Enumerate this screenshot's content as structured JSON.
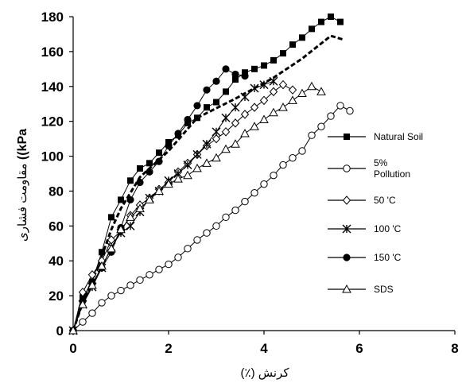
{
  "chart_data": {
    "type": "line",
    "title": "",
    "xlabel": "کرنش (٪)",
    "ylabel_main": "مقاومت فشاری",
    "ylabel_unit": "kPa)) ",
    "xlim": [
      0,
      8
    ],
    "ylim": [
      0,
      180
    ],
    "xticks": [
      0,
      2,
      4,
      6,
      8
    ],
    "yticks": [
      0,
      20,
      40,
      60,
      80,
      100,
      120,
      140,
      160,
      180
    ],
    "xtick_labels": [
      "0",
      "2",
      "4",
      "6",
      "8"
    ],
    "ytick_labels": [
      "0",
      "20",
      "40",
      "60",
      "80",
      "100",
      "120",
      "140",
      "160",
      "180"
    ],
    "grid": false,
    "legend_position": "right",
    "series": [
      {
        "name": "Natural Soil",
        "marker": "filled-square",
        "fit_x": [
          0,
          0.2,
          0.5,
          0.8,
          1.0,
          1.4,
          2.0,
          2.6,
          3.4,
          4.2,
          4.8,
          5.4,
          5.65
        ],
        "fit_y": [
          0,
          16,
          35,
          58,
          70,
          88,
          103,
          122,
          133,
          145,
          156,
          169,
          167
        ],
        "x": [
          0,
          0.2,
          0.4,
          0.6,
          0.8,
          1.0,
          1.2,
          1.4,
          1.6,
          1.8,
          2.0,
          2.2,
          2.4,
          2.6,
          2.8,
          3.0,
          3.2,
          3.4,
          3.6,
          3.8,
          4.0,
          4.2,
          4.4,
          4.6,
          4.8,
          5.0,
          5.2,
          5.4,
          5.6
        ],
        "y": [
          0,
          19,
          28,
          45,
          65,
          75,
          86,
          93,
          96,
          102,
          108,
          112,
          119,
          122,
          128,
          131,
          137,
          144,
          148,
          150,
          152,
          155,
          159,
          164,
          168,
          173,
          177,
          180,
          177
        ]
      },
      {
        "name": "5% Pollution",
        "marker": "open-circle",
        "x": [
          0,
          0.2,
          0.4,
          0.6,
          0.8,
          1.0,
          1.2,
          1.4,
          1.6,
          1.8,
          2.0,
          2.2,
          2.4,
          2.6,
          2.8,
          3.0,
          3.2,
          3.4,
          3.6,
          3.8,
          4.0,
          4.2,
          4.4,
          4.6,
          4.8,
          5.0,
          5.2,
          5.4,
          5.6,
          5.8
        ],
        "y": [
          0,
          5,
          10,
          16,
          20,
          23,
          26,
          29,
          32,
          35,
          38,
          42,
          47,
          52,
          56,
          60,
          65,
          69,
          74,
          79,
          84,
          89,
          95,
          99,
          103,
          112,
          117,
          123,
          129,
          126
        ]
      },
      {
        "name": "50 'C",
        "marker": "open-diamond",
        "x": [
          0,
          0.2,
          0.4,
          0.6,
          0.8,
          1.0,
          1.2,
          1.4,
          1.6,
          1.8,
          2.0,
          2.2,
          2.4,
          2.6,
          2.8,
          3.0,
          3.2,
          3.4,
          3.6,
          3.8,
          4.0,
          4.2,
          4.4,
          4.6
        ],
        "y": [
          0,
          22,
          32,
          40,
          52,
          57,
          66,
          72,
          76,
          81,
          85,
          91,
          96,
          101,
          106,
          110,
          114,
          119,
          124,
          128,
          132,
          137,
          141,
          138
        ]
      },
      {
        "name": "100 'C",
        "marker": "x-star",
        "x": [
          0,
          0.2,
          0.4,
          0.6,
          0.8,
          1.0,
          1.2,
          1.4,
          1.6,
          1.8,
          2.0,
          2.2,
          2.4,
          2.6,
          2.8,
          3.0,
          3.2,
          3.4,
          3.6,
          3.8,
          4.0,
          4.2
        ],
        "y": [
          0,
          15,
          25,
          36,
          48,
          56,
          60,
          68,
          76,
          80,
          86,
          90,
          95,
          101,
          107,
          114,
          122,
          128,
          134,
          139,
          141,
          143
        ]
      },
      {
        "name": "150 'C",
        "marker": "filled-circle",
        "x": [
          0,
          0.2,
          0.4,
          0.6,
          0.8,
          1.0,
          1.2,
          1.4,
          1.6,
          1.8,
          2.0,
          2.2,
          2.4,
          2.6,
          2.8,
          3.0,
          3.2,
          3.4,
          3.6
        ],
        "y": [
          0,
          17,
          27,
          36,
          45,
          59,
          75,
          85,
          91,
          97,
          106,
          113,
          121,
          129,
          138,
          143,
          150,
          147,
          146
        ]
      },
      {
        "name": "SDS",
        "marker": "open-triangle",
        "x": [
          0,
          0.2,
          0.4,
          0.6,
          0.8,
          1.0,
          1.2,
          1.4,
          1.6,
          1.8,
          2.0,
          2.2,
          2.4,
          2.6,
          2.8,
          3.0,
          3.2,
          3.4,
          3.6,
          3.8,
          4.0,
          4.2,
          4.4,
          4.6,
          4.8,
          5.0,
          5.2
        ],
        "y": [
          0,
          15,
          26,
          37,
          47,
          58,
          65,
          70,
          75,
          80,
          84,
          87,
          89,
          93,
          96,
          99,
          104,
          107,
          113,
          117,
          121,
          125,
          128,
          132,
          136,
          140,
          137
        ]
      }
    ],
    "legend": [
      {
        "label": "Natural Soil",
        "lines": [
          "Natural Soil"
        ]
      },
      {
        "label": "5% Pollution",
        "lines": [
          "5%",
          "Pollution"
        ]
      },
      {
        "label": "50 'C",
        "lines": [
          "50 'C"
        ]
      },
      {
        "label": "100 'C",
        "lines": [
          "100 'C"
        ]
      },
      {
        "label": "150 'C",
        "lines": [
          "150 'C"
        ]
      },
      {
        "label": "SDS",
        "lines": [
          "SDS"
        ]
      }
    ]
  }
}
